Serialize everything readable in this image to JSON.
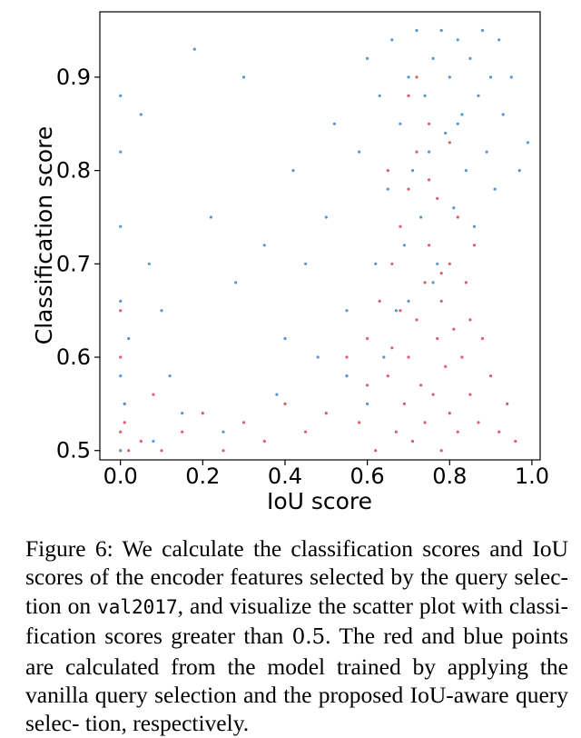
{
  "chart_data": {
    "type": "scatter",
    "title": "",
    "xlabel": "IoU score",
    "ylabel": "Classification score",
    "xlim": [
      -0.05,
      1.02
    ],
    "ylim": [
      0.49,
      0.97
    ],
    "xticks": [
      0.0,
      0.2,
      0.4,
      0.6,
      0.8,
      1.0
    ],
    "xtick_labels": [
      "0.0",
      "0.2",
      "0.4",
      "0.6",
      "0.8",
      "1.0"
    ],
    "yticks": [
      0.5,
      0.6,
      0.7,
      0.8,
      0.9
    ],
    "ytick_labels": [
      "0.5",
      "0.6",
      "0.7",
      "0.8",
      "0.9"
    ],
    "grid": false,
    "legend": null,
    "series": [
      {
        "name": "vanilla query selection",
        "color": "#d9606f",
        "x": [
          0.0,
          0.0,
          0.01,
          0.0,
          0.02,
          0.0,
          0.01,
          0.05,
          0.08,
          0.1,
          0.15,
          0.2,
          0.25,
          0.3,
          0.35,
          0.4,
          0.45,
          0.5,
          0.55,
          0.58,
          0.6,
          0.62,
          0.63,
          0.65,
          0.66,
          0.67,
          0.68,
          0.69,
          0.7,
          0.7,
          0.71,
          0.72,
          0.72,
          0.73,
          0.74,
          0.74,
          0.75,
          0.75,
          0.76,
          0.77,
          0.77,
          0.78,
          0.78,
          0.79,
          0.8,
          0.8,
          0.81,
          0.82,
          0.82,
          0.83,
          0.84,
          0.85,
          0.86,
          0.87,
          0.88,
          0.9,
          0.92,
          0.94,
          0.96,
          0.65,
          0.7,
          0.75,
          0.8,
          0.72,
          0.68,
          0.78,
          0.85,
          0.6,
          0.55,
          0.66
        ],
        "y": [
          0.5,
          0.52,
          0.55,
          0.6,
          0.5,
          0.65,
          0.53,
          0.51,
          0.56,
          0.5,
          0.52,
          0.54,
          0.5,
          0.53,
          0.51,
          0.55,
          0.52,
          0.54,
          0.58,
          0.53,
          0.62,
          0.5,
          0.66,
          0.58,
          0.7,
          0.52,
          0.74,
          0.55,
          0.6,
          0.78,
          0.51,
          0.64,
          0.82,
          0.57,
          0.68,
          0.53,
          0.72,
          0.85,
          0.56,
          0.62,
          0.77,
          0.5,
          0.66,
          0.59,
          0.7,
          0.54,
          0.63,
          0.75,
          0.52,
          0.6,
          0.68,
          0.56,
          0.72,
          0.53,
          0.62,
          0.58,
          0.52,
          0.55,
          0.51,
          0.8,
          0.88,
          0.79,
          0.83,
          0.9,
          0.65,
          0.69,
          0.64,
          0.57,
          0.6,
          0.61
        ]
      },
      {
        "name": "IoU-aware query selection",
        "color": "#5b97cf",
        "x": [
          0.0,
          0.0,
          0.0,
          0.0,
          0.0,
          0.0,
          0.01,
          0.02,
          0.05,
          0.07,
          0.1,
          0.12,
          0.18,
          0.22,
          0.28,
          0.3,
          0.35,
          0.4,
          0.42,
          0.45,
          0.5,
          0.52,
          0.55,
          0.58,
          0.6,
          0.62,
          0.63,
          0.65,
          0.66,
          0.67,
          0.68,
          0.69,
          0.7,
          0.71,
          0.72,
          0.73,
          0.74,
          0.75,
          0.76,
          0.77,
          0.78,
          0.79,
          0.8,
          0.81,
          0.82,
          0.83,
          0.84,
          0.85,
          0.86,
          0.87,
          0.88,
          0.89,
          0.9,
          0.91,
          0.92,
          0.93,
          0.95,
          0.97,
          0.99,
          0.64,
          0.7,
          0.76,
          0.82,
          0.6,
          0.55,
          0.48,
          0.38,
          0.25,
          0.15,
          0.08
        ],
        "y": [
          0.5,
          0.58,
          0.66,
          0.74,
          0.82,
          0.88,
          0.55,
          0.62,
          0.86,
          0.7,
          0.65,
          0.58,
          0.93,
          0.75,
          0.68,
          0.9,
          0.72,
          0.62,
          0.8,
          0.7,
          0.75,
          0.85,
          0.65,
          0.82,
          0.92,
          0.7,
          0.88,
          0.78,
          0.94,
          0.65,
          0.85,
          0.72,
          0.9,
          0.8,
          0.95,
          0.75,
          0.88,
          0.82,
          0.92,
          0.7,
          0.95,
          0.84,
          0.9,
          0.76,
          0.94,
          0.86,
          0.8,
          0.92,
          0.74,
          0.88,
          0.95,
          0.82,
          0.9,
          0.78,
          0.94,
          0.86,
          0.9,
          0.8,
          0.83,
          0.6,
          0.66,
          0.68,
          0.85,
          0.55,
          0.58,
          0.6,
          0.56,
          0.52,
          0.54,
          0.51
        ]
      }
    ]
  },
  "caption": {
    "line1": "Figure 6:  We calculate the classification scores and IoU",
    "line2": "scores of the encoder features selected by the query selec-",
    "line3_a": "tion on ",
    "line3_code": "val2017",
    "line3_b": ", and visualize the scatter plot with classi-",
    "line4_a": "fication scores greater than ",
    "line4_math": "0.5",
    "line4_b": ". The red and blue points are",
    "line5": "calculated from the model trained by applying the vanilla",
    "line6": "query selection and the proposed IoU-aware query selec-",
    "line7": "tion, respectively."
  }
}
